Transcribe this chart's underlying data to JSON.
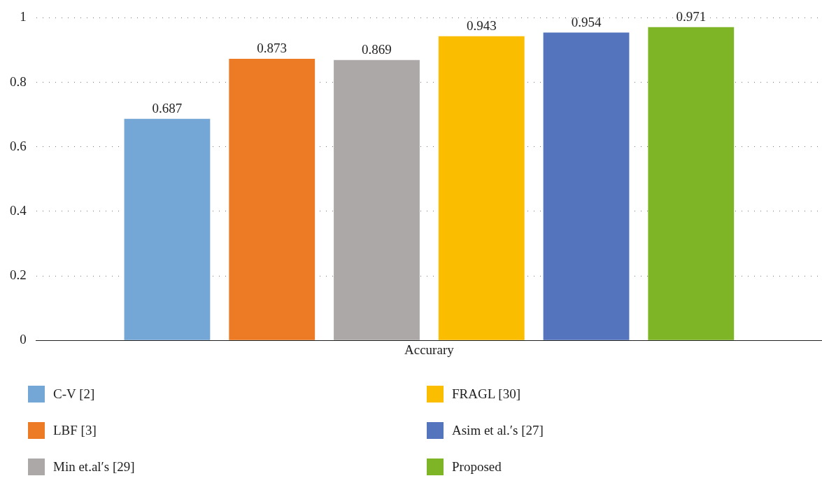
{
  "chart_data": {
    "type": "bar",
    "categories": [
      "Accurary"
    ],
    "series": [
      {
        "name": "C-V [2]",
        "color": "#74a7d6",
        "values": [
          0.687
        ]
      },
      {
        "name": "LBF [3]",
        "color": "#ed7b25",
        "values": [
          0.873
        ]
      },
      {
        "name": "Min et.al′s [29]",
        "color": "#aba8a7",
        "values": [
          0.869
        ]
      },
      {
        "name": "FRAGL [30]",
        "color": "#fbbd00",
        "values": [
          0.943
        ]
      },
      {
        "name": "Asim et al.′s [27]",
        "color": "#5475bd",
        "values": [
          0.954
        ]
      },
      {
        "name": "Proposed",
        "color": "#7db526",
        "values": [
          0.971
        ]
      }
    ],
    "ylim": [
      0,
      1
    ],
    "yticks": [
      0,
      0.2,
      0.4,
      0.6,
      0.8,
      1
    ],
    "grid": "y",
    "legend": "bottom",
    "data_labels": true
  }
}
